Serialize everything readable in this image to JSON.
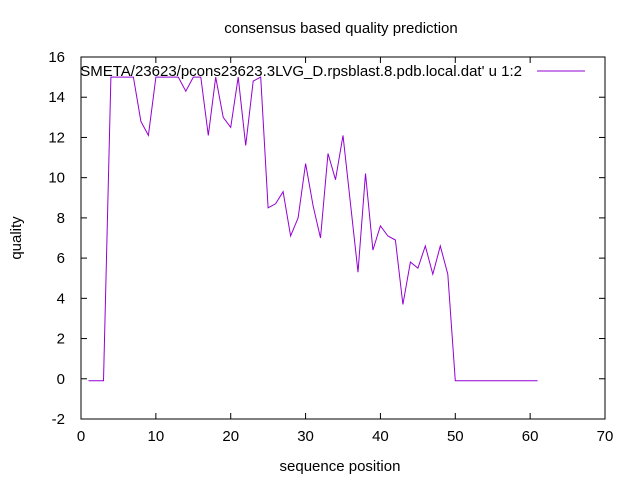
{
  "chart_data": {
    "type": "line",
    "title": "consensus based quality prediction",
    "xlabel": "sequence position",
    "ylabel": "quality",
    "xlim": [
      0,
      70
    ],
    "ylim": [
      -2,
      16
    ],
    "xticks": [
      0,
      10,
      20,
      30,
      40,
      50,
      60,
      70
    ],
    "yticks": [
      -2,
      0,
      2,
      4,
      6,
      8,
      10,
      12,
      14,
      16
    ],
    "grid": false,
    "legend_position": "top-right",
    "colors": {
      "series": "#9400d3",
      "axes": "#000000"
    },
    "series": [
      {
        "name": "SMETA/23623/pcons23623.3LVG_D.rpsblast.8.pdb.local.dat' u 1:2",
        "x": [
          1,
          2,
          3,
          4,
          5,
          6,
          7,
          8,
          9,
          10,
          11,
          12,
          13,
          14,
          15,
          16,
          17,
          18,
          19,
          20,
          21,
          22,
          23,
          24,
          25,
          26,
          27,
          28,
          29,
          30,
          31,
          32,
          33,
          34,
          35,
          36,
          37,
          38,
          39,
          40,
          41,
          42,
          43,
          44,
          45,
          46,
          47,
          48,
          49,
          50,
          51,
          52,
          53,
          54,
          55,
          56,
          57,
          58,
          59,
          60,
          61
        ],
        "y": [
          -0.1,
          -0.1,
          -0.1,
          15.0,
          15.0,
          15.0,
          15.0,
          12.8,
          12.1,
          15.0,
          15.0,
          15.0,
          15.0,
          14.3,
          15.0,
          15.0,
          12.1,
          15.0,
          13.0,
          12.5,
          15.0,
          11.6,
          14.8,
          15.0,
          8.5,
          8.7,
          9.3,
          7.1,
          8.0,
          10.7,
          8.6,
          7.0,
          11.2,
          9.9,
          12.1,
          8.7,
          5.3,
          10.2,
          6.4,
          7.6,
          7.1,
          6.9,
          3.7,
          5.8,
          5.5,
          6.6,
          5.2,
          6.6,
          5.2,
          -0.1,
          -0.1,
          -0.1,
          -0.1,
          -0.1,
          -0.1,
          -0.1,
          -0.1,
          -0.1,
          -0.1,
          -0.1,
          -0.1
        ]
      }
    ]
  }
}
